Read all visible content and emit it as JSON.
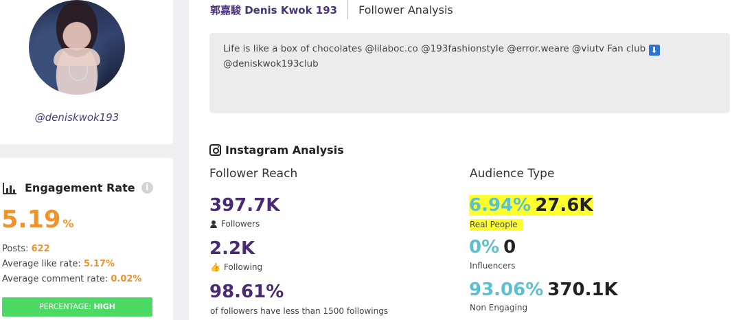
{
  "profile": {
    "handle": "@deniskwok193"
  },
  "engagement": {
    "title": "Engagement Rate",
    "info_icon": "i",
    "value": "5.19",
    "value_unit": "%",
    "posts_label": "Posts:",
    "posts_value": "622",
    "like_label": "Average like rate:",
    "like_value": "5.17%",
    "comment_label": "Average comment rate:",
    "comment_value": "0.02%",
    "badge_label": "PERCENTAGE:",
    "badge_value": "HIGH",
    "badge_color": "#4cd964"
  },
  "header": {
    "name": "郭嘉駿 Denis Kwok 193",
    "tab": "Follower Analysis"
  },
  "bio": {
    "line1": "Life is like a box of chocolates @lilaboc.co @193fashionstyle @error.weare @viutv Fan club",
    "icon": "⬇",
    "line2": "@deniskwok193club"
  },
  "analysis": {
    "title": "Instagram Analysis",
    "reach": {
      "title": "Follower Reach",
      "followers_value": "397.7K",
      "followers_label": "Followers",
      "following_value": "2.2K",
      "following_label": "Following",
      "ratio_value": "98.61%",
      "ratio_label": "of followers have less than 1500 followings"
    },
    "audience": {
      "title": "Audience Type",
      "real_pct": "6.94%",
      "real_count": "27.6K",
      "real_label": "Real People",
      "infl_pct": "0%",
      "infl_count": "0",
      "infl_label": "Influencers",
      "non_pct": "93.06%",
      "non_count": "370.1K",
      "non_label": "Non Engaging"
    }
  },
  "colors": {
    "accent_orange": "#f0932b",
    "accent_purple": "#4a2a72",
    "accent_teal": "#5bc0cf",
    "highlight": "#ffff2e"
  }
}
